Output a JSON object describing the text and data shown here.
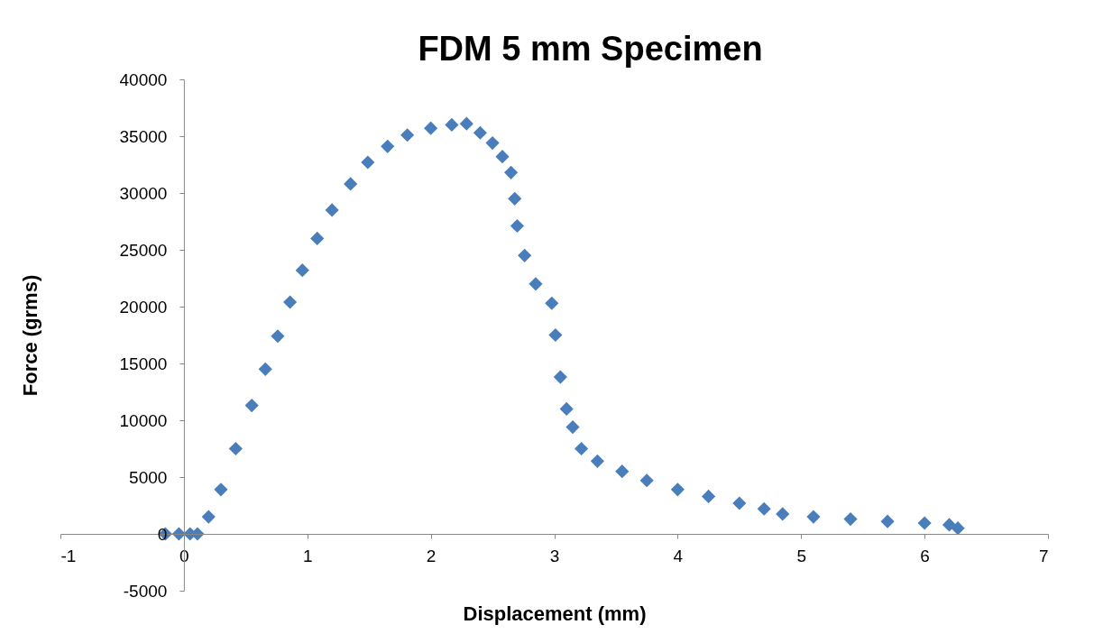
{
  "chart_data": {
    "type": "scatter",
    "title": "FDM 5 mm Specimen",
    "xlabel": "Displacement (mm)",
    "ylabel": "Force (grms)",
    "marker": "diamond",
    "color": "#4a7ebb",
    "x": [
      -0.15,
      -0.04,
      0.05,
      0.11,
      0.2,
      0.3,
      0.42,
      0.55,
      0.66,
      0.76,
      0.86,
      0.96,
      1.08,
      1.2,
      1.35,
      1.49,
      1.65,
      1.81,
      2.0,
      2.17,
      2.29,
      2.4,
      2.5,
      2.58,
      2.65,
      2.68,
      2.7,
      2.76,
      2.85,
      2.98,
      3.01,
      3.05,
      3.1,
      3.15,
      3.22,
      3.35,
      3.55,
      3.75,
      4.0,
      4.25,
      4.5,
      4.7,
      4.85,
      5.1,
      5.4,
      5.7,
      6.0,
      6.2,
      6.27
    ],
    "values": [
      0,
      0,
      0,
      0,
      1500,
      3900,
      7500,
      11300,
      14500,
      17400,
      20400,
      23200,
      26000,
      28500,
      30800,
      32700,
      34100,
      35100,
      35700,
      36000,
      36100,
      35300,
      34400,
      33200,
      31800,
      29500,
      27100,
      24500,
      22000,
      20300,
      17500,
      13800,
      11000,
      9400,
      7500,
      6400,
      5500,
      4700,
      3900,
      3300,
      2700,
      2200,
      1750,
      1500,
      1300,
      1100,
      950,
      800,
      500
    ],
    "xlim": [
      -1,
      7
    ],
    "xticks": [
      -1,
      0,
      1,
      2,
      3,
      4,
      5,
      6,
      7
    ],
    "ylim": [
      -5000,
      40000
    ],
    "yticks": [
      -5000,
      0,
      5000,
      10000,
      15000,
      20000,
      25000,
      30000,
      35000,
      40000
    ]
  }
}
